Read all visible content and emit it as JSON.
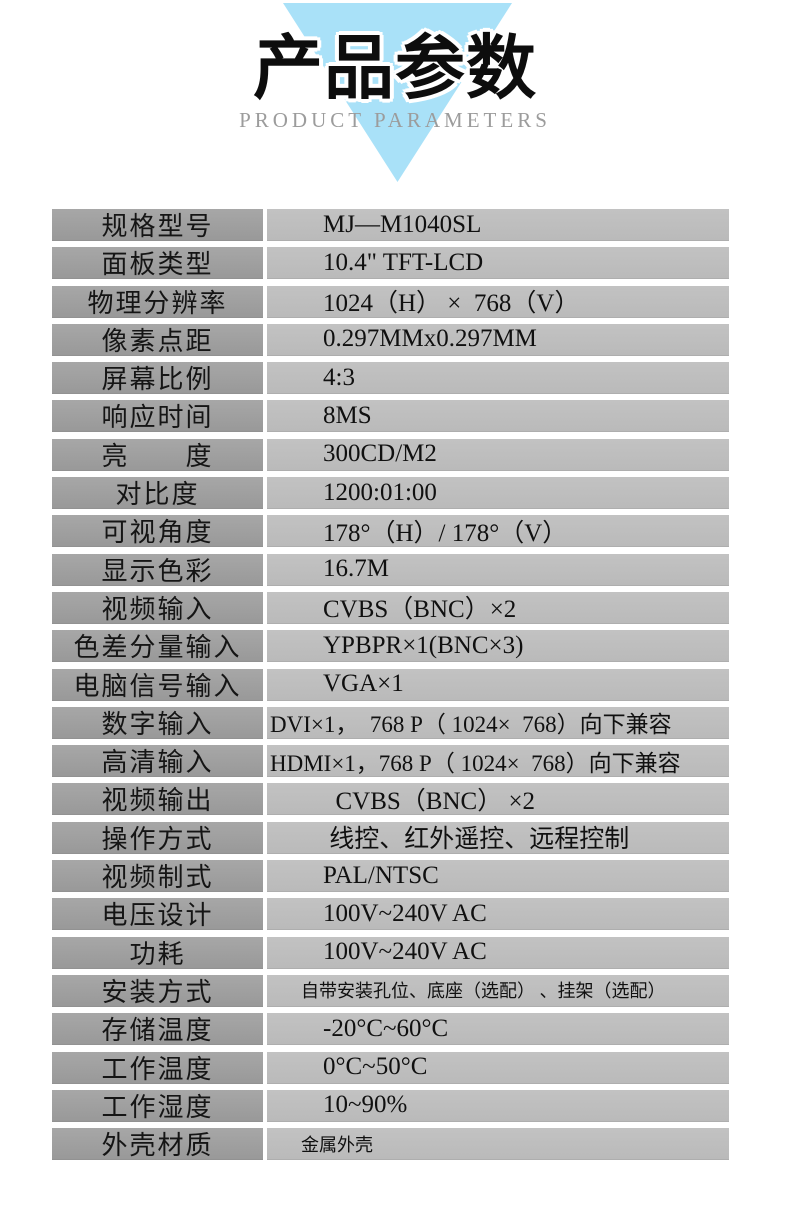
{
  "header": {
    "title": "产品参数",
    "subtitle": "PRODUCT PARAMETERS",
    "triangle_color": "#a9e1f8"
  },
  "colors": {
    "label_cell_bg": "#9e9e9e",
    "value_cell_bg": "#bfbfbf",
    "text": "#101010",
    "subtitle_gray": "#9c9c9c"
  },
  "table": {
    "rows": [
      {
        "label": "规格型号",
        "value": "MJ—M1040SL"
      },
      {
        "label": "面板类型",
        "value": "10.4\" TFT-LCD"
      },
      {
        "label": "物理分辨率",
        "value": "1024（H） ×  768（V）"
      },
      {
        "label": "像素点距",
        "value": "0.297MMx0.297MM"
      },
      {
        "label": "屏幕比例",
        "value": "4:3"
      },
      {
        "label": "响应时间",
        "value": "8MS"
      },
      {
        "label": "亮　　度",
        "value": "300CD/M2"
      },
      {
        "label": "对比度",
        "value": "1200:01:00"
      },
      {
        "label": "可视角度",
        "value": "178°（H）/ 178°（V）"
      },
      {
        "label": "显示色彩",
        "value": "16.7M"
      },
      {
        "label": "视频输入",
        "value": "CVBS（BNC）×2"
      },
      {
        "label": "色差分量输入",
        "value": "YPBPR×1(BNC×3)"
      },
      {
        "label": "电脑信号输入",
        "value": "VGA×1"
      },
      {
        "label": "数字输入",
        "value": "DVI×1，  768 P（ 1024×  768）向下兼容"
      },
      {
        "label": "高清输入",
        "value": "HDMI×1，768 P（ 1024×  768）向下兼容"
      },
      {
        "label": "视频输出",
        "value": "  CVBS（BNC） ×2"
      },
      {
        "label": "操作方式",
        "value": " 线控、红外遥控、远程控制"
      },
      {
        "label": "视频制式",
        "value": "PAL/NTSC"
      },
      {
        "label": "电压设计",
        "value": "100V~240V AC"
      },
      {
        "label": "功耗",
        "value": "100V~240V AC"
      },
      {
        "label": "安装方式",
        "value": "自带安装孔位、底座（选配） 、挂架（选配）"
      },
      {
        "label": "存储温度",
        "value": "-20°C~60°C"
      },
      {
        "label": "工作温度",
        "value": "0°C~50°C"
      },
      {
        "label": "工作湿度",
        "value": "10~90%"
      },
      {
        "label": "外壳材质",
        "value": "金属外壳"
      }
    ]
  }
}
